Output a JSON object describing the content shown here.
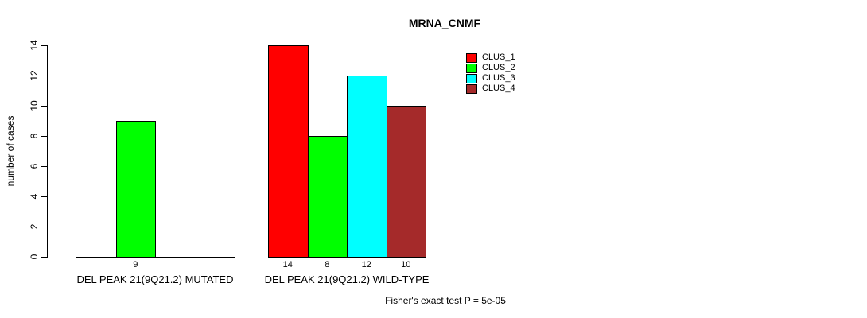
{
  "title": "MRNA_CNMF",
  "y_axis": {
    "label": "number of cases"
  },
  "footer": "Fisher's exact test P = 5e-05",
  "legend": {
    "position": "top-right",
    "items": [
      {
        "label": "CLUS_1",
        "color": "#FF0000"
      },
      {
        "label": "CLUS_2",
        "color": "#00FF00"
      },
      {
        "label": "CLUS_3",
        "color": "#00FFFF"
      },
      {
        "label": "CLUS_4",
        "color": "#A52A2A"
      }
    ]
  },
  "chart_data": {
    "type": "bar",
    "title": "MRNA_CNMF",
    "xlabel": "",
    "ylabel": "number of cases",
    "ylim": [
      0,
      14
    ],
    "yticks": [
      0,
      2,
      4,
      6,
      8,
      10,
      12,
      14
    ],
    "grid": false,
    "legend_position": "top-right",
    "series_names": [
      "CLUS_1",
      "CLUS_2",
      "CLUS_3",
      "CLUS_4"
    ],
    "series_colors": [
      "#FF0000",
      "#00FF00",
      "#00FFFF",
      "#A52A2A"
    ],
    "groups": [
      {
        "label": "DEL PEAK 21(9Q21.2) MUTATED",
        "values": [
          0,
          9,
          0,
          0
        ],
        "bar_labels": [
          "",
          "9",
          "",
          ""
        ]
      },
      {
        "label": "DEL PEAK 21(9Q21.2) WILD-TYPE",
        "values": [
          14,
          8,
          12,
          10
        ],
        "bar_labels": [
          "14",
          "8",
          "12",
          "10"
        ]
      }
    ],
    "annotation": "Fisher's exact test P = 5e-05"
  }
}
